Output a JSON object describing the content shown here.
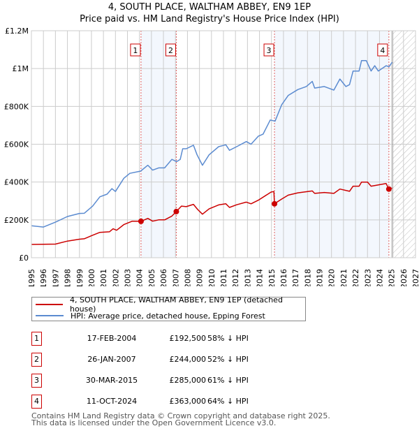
{
  "title_line1": "4, SOUTH PLACE, WALTHAM ABBEY, EN9 1EP",
  "title_line2": "Price paid vs. HM Land Registry's House Price Index (HPI)",
  "chart_data": {
    "type": "line",
    "title": "Price paid vs. HM Land Registry's House Price Index (HPI)",
    "xlim": [
      1995,
      2027
    ],
    "ylim": [
      0,
      1200000
    ],
    "x_ticks": [
      "1995",
      "1996",
      "1997",
      "1998",
      "1999",
      "2000",
      "2001",
      "2002",
      "2003",
      "2004",
      "2005",
      "2006",
      "2007",
      "2008",
      "2009",
      "2010",
      "2011",
      "2012",
      "2013",
      "2014",
      "2015",
      "2016",
      "2017",
      "2018",
      "2019",
      "2020",
      "2021",
      "2022",
      "2023",
      "2024",
      "2025",
      "2026",
      "2027"
    ],
    "y_ticks": [
      {
        "v": 0,
        "label": "£0"
      },
      {
        "v": 200000,
        "label": "£200K"
      },
      {
        "v": 400000,
        "label": "£400K"
      },
      {
        "v": 600000,
        "label": "£600K"
      },
      {
        "v": 800000,
        "label": "£800K"
      },
      {
        "v": 1000000,
        "label": "£1M"
      },
      {
        "v": 1200000,
        "label": "£1.2M"
      }
    ],
    "grid": true,
    "forecast_hatch_from": 2025.1,
    "shaded_ranges": [
      [
        2004.13,
        2007.07
      ],
      [
        2015.25,
        2024.78
      ]
    ],
    "series": [
      {
        "name": "4, SOUTH PLACE, WALTHAM ABBEY, EN9 1EP (detached house)",
        "color": "#cc0000",
        "points": [
          [
            1995,
            70000
          ],
          [
            1997,
            72000
          ],
          [
            1998,
            88000
          ],
          [
            1999,
            98000
          ],
          [
            1999.4,
            100000
          ],
          [
            2000.1,
            119000
          ],
          [
            2000.7,
            134000
          ],
          [
            2001.5,
            137000
          ],
          [
            2001.8,
            153000
          ],
          [
            2002.1,
            145000
          ],
          [
            2002.7,
            175000
          ],
          [
            2003.4,
            193000
          ],
          [
            2004.13,
            192500
          ],
          [
            2004.7,
            208000
          ],
          [
            2005.1,
            193000
          ],
          [
            2005.6,
            200000
          ],
          [
            2006.1,
            200000
          ],
          [
            2006.7,
            220000
          ],
          [
            2007.07,
            244000
          ],
          [
            2007.5,
            273000
          ],
          [
            2007.9,
            270000
          ],
          [
            2008.5,
            282000
          ],
          [
            2008.85,
            255000
          ],
          [
            2009.25,
            230000
          ],
          [
            2009.8,
            258000
          ],
          [
            2010.6,
            279000
          ],
          [
            2011.2,
            285000
          ],
          [
            2011.5,
            266000
          ],
          [
            2012.1,
            280000
          ],
          [
            2012.9,
            294000
          ],
          [
            2013.3,
            285000
          ],
          [
            2013.9,
            304000
          ],
          [
            2014.97,
            347000
          ],
          [
            2015.2,
            350000
          ],
          [
            2015.25,
            285000
          ],
          [
            2015.85,
            310000
          ],
          [
            2016.4,
            331000
          ],
          [
            2017.2,
            343000
          ],
          [
            2018.4,
            353000
          ],
          [
            2018.6,
            340000
          ],
          [
            2019.4,
            345000
          ],
          [
            2020.2,
            340000
          ],
          [
            2020.7,
            363000
          ],
          [
            2021.5,
            351000
          ],
          [
            2021.8,
            378000
          ],
          [
            2022.3,
            378000
          ],
          [
            2022.5,
            400000
          ],
          [
            2023.0,
            400000
          ],
          [
            2023.3,
            378000
          ],
          [
            2024.55,
            392000
          ],
          [
            2024.78,
            363000
          ],
          [
            2025.05,
            368000
          ]
        ]
      },
      {
        "name": "HPI: Average price, detached house, Epping Forest",
        "color": "#5b8bd0",
        "points": [
          [
            1995,
            169000
          ],
          [
            1996,
            162000
          ],
          [
            1997,
            188000
          ],
          [
            1998,
            218000
          ],
          [
            1999,
            234000
          ],
          [
            1999.4,
            235000
          ],
          [
            2000.1,
            273000
          ],
          [
            2000.7,
            322000
          ],
          [
            2001.3,
            336000
          ],
          [
            2001.7,
            365000
          ],
          [
            2002.0,
            350000
          ],
          [
            2002.7,
            420000
          ],
          [
            2003.2,
            446000
          ],
          [
            2004.1,
            458000
          ],
          [
            2004.7,
            489000
          ],
          [
            2005.1,
            463000
          ],
          [
            2005.6,
            475000
          ],
          [
            2006.1,
            475000
          ],
          [
            2006.7,
            520000
          ],
          [
            2007.1,
            508000
          ],
          [
            2007.4,
            520000
          ],
          [
            2007.6,
            576000
          ],
          [
            2007.9,
            576000
          ],
          [
            2008.5,
            595000
          ],
          [
            2008.8,
            544000
          ],
          [
            2009.25,
            489000
          ],
          [
            2009.8,
            544000
          ],
          [
            2010.6,
            587000
          ],
          [
            2011.2,
            597000
          ],
          [
            2011.5,
            568000
          ],
          [
            2012.1,
            587000
          ],
          [
            2012.9,
            614000
          ],
          [
            2013.3,
            600000
          ],
          [
            2013.9,
            642000
          ],
          [
            2014.3,
            653000
          ],
          [
            2014.9,
            728000
          ],
          [
            2015.3,
            722000
          ],
          [
            2015.85,
            809000
          ],
          [
            2016.4,
            858000
          ],
          [
            2017.2,
            889000
          ],
          [
            2017.9,
            905000
          ],
          [
            2018.4,
            932000
          ],
          [
            2018.6,
            897000
          ],
          [
            2019.4,
            905000
          ],
          [
            2020.2,
            886000
          ],
          [
            2020.7,
            945000
          ],
          [
            2021.2,
            905000
          ],
          [
            2021.5,
            915000
          ],
          [
            2021.8,
            987000
          ],
          [
            2022.3,
            987000
          ],
          [
            2022.5,
            1042000
          ],
          [
            2022.9,
            1042000
          ],
          [
            2023.3,
            987000
          ],
          [
            2023.6,
            1015000
          ],
          [
            2023.9,
            987000
          ],
          [
            2024.55,
            1015000
          ],
          [
            2024.8,
            1010000
          ],
          [
            2025.05,
            1033000
          ]
        ]
      }
    ],
    "sales": [
      {
        "id": "1",
        "x": 2004.13,
        "price": 192500
      },
      {
        "id": "2",
        "x": 2007.07,
        "price": 244000
      },
      {
        "id": "3",
        "x": 2015.25,
        "price": 285000
      },
      {
        "id": "4",
        "x": 2024.78,
        "price": 363000
      }
    ]
  },
  "legend": [
    {
      "label": "4, SOUTH PLACE, WALTHAM ABBEY, EN9 1EP (detached house)",
      "color": "#cc0000"
    },
    {
      "label": "HPI: Average price, detached house, Epping Forest",
      "color": "#5b8bd0"
    }
  ],
  "table": [
    {
      "num": "1",
      "date": "17-FEB-2004",
      "price": "£192,500",
      "hpi": "58% ↓ HPI"
    },
    {
      "num": "2",
      "date": "26-JAN-2007",
      "price": "£244,000",
      "hpi": "52% ↓ HPI"
    },
    {
      "num": "3",
      "date": "30-MAR-2015",
      "price": "£285,000",
      "hpi": "61% ↓ HPI"
    },
    {
      "num": "4",
      "date": "11-OCT-2024",
      "price": "£363,000",
      "hpi": "64% ↓ HPI"
    }
  ],
  "footer_line1": "Contains HM Land Registry data © Crown copyright and database right 2025.",
  "footer_line2": "This data is licensed under the Open Government Licence v3.0."
}
